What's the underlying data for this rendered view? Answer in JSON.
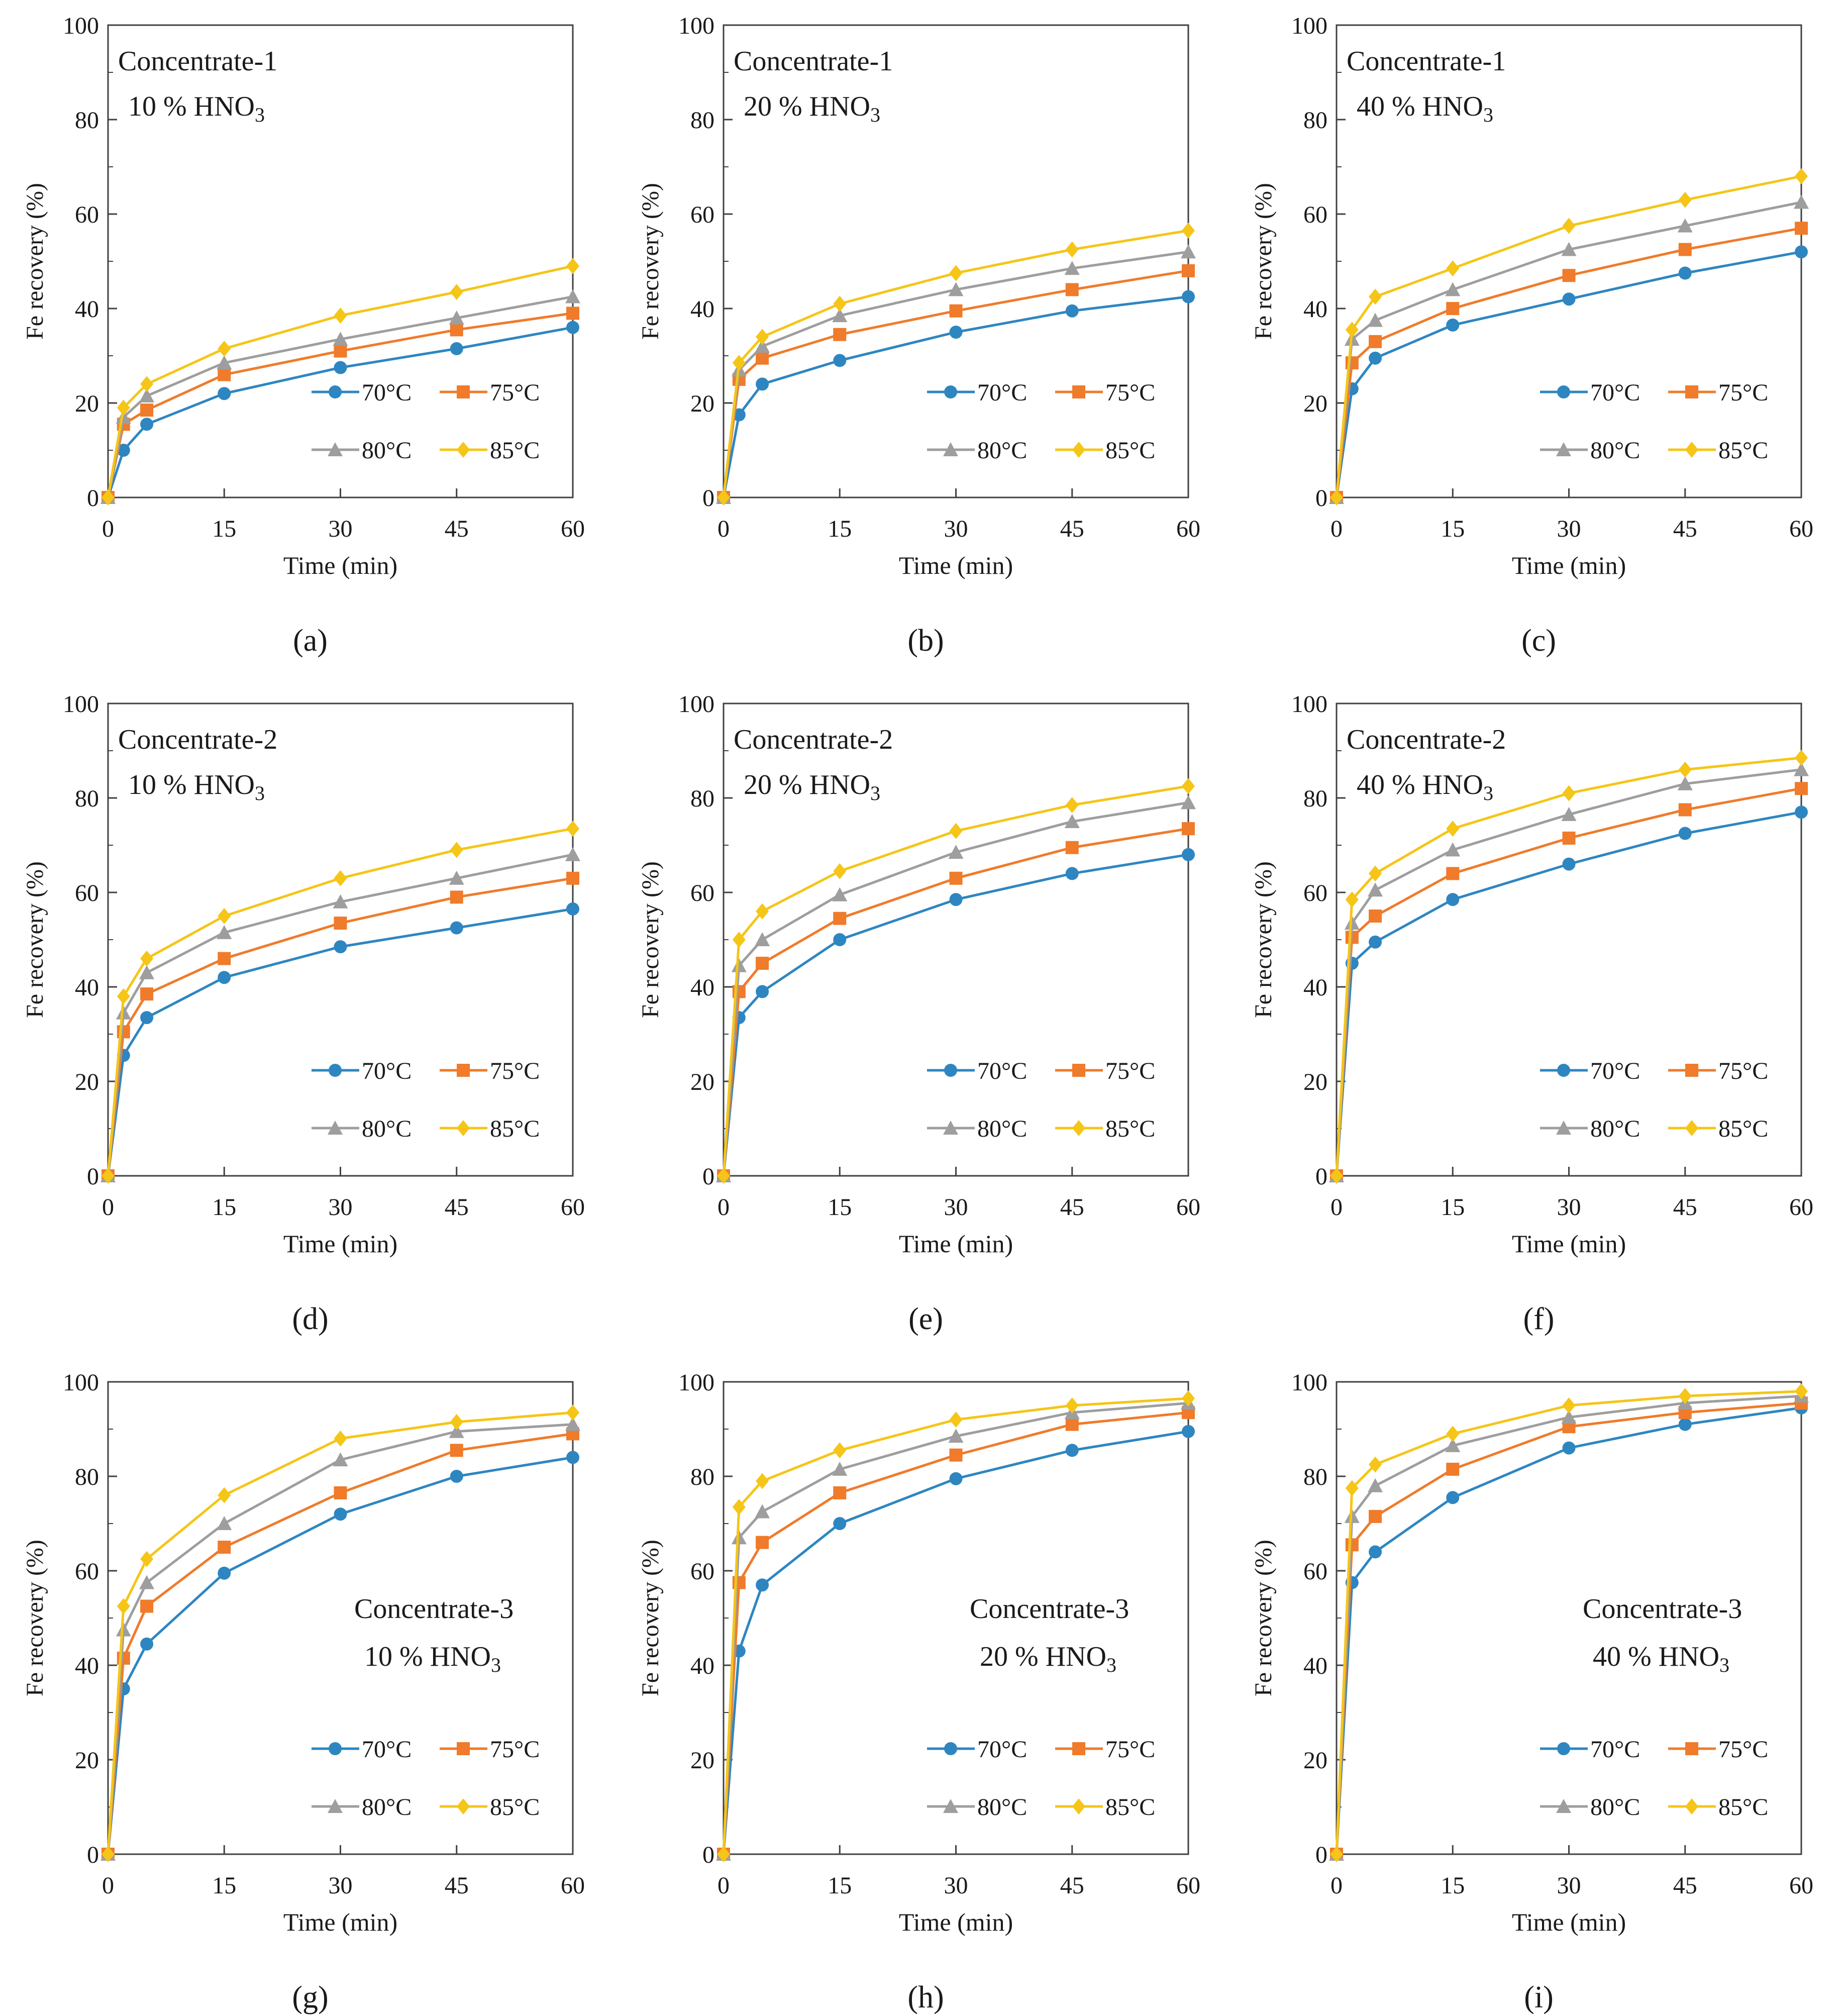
{
  "figure": {
    "x_label": "Time (min)",
    "y_label": "Fe recovery (%)",
    "series_colors": {
      "70°C": "#2e86c1",
      "75°C": "#ef7b2b",
      "80°C": "#9e9e9e",
      "85°C": "#f5c518"
    },
    "series_markers": {
      "70°C": "circle",
      "75°C": "square",
      "80°C": "triangle",
      "85°C": "diamond"
    }
  },
  "chart_data": [
    {
      "type": "line",
      "panel": "(a)",
      "annotation": [
        "Concentrate-1",
        "10 % HNO3"
      ],
      "xlabel": "Time (min)",
      "ylabel": "Fe recovery (%)",
      "x": [
        0,
        2,
        5,
        15,
        30,
        45,
        60
      ],
      "xticks": [
        0,
        15,
        30,
        45,
        60
      ],
      "yticks": [
        0,
        20,
        40,
        60,
        80,
        100
      ],
      "xlim": [
        0,
        60
      ],
      "ylim": [
        0,
        100
      ],
      "legend_position": "lower-right",
      "annotation_position": "top-left",
      "series": [
        {
          "name": "70°C",
          "values": [
            0,
            10,
            15.5,
            22,
            27.5,
            31.5,
            36
          ]
        },
        {
          "name": "75°C",
          "values": [
            0,
            15.5,
            18.5,
            26,
            31,
            35.5,
            39
          ]
        },
        {
          "name": "80°C",
          "values": [
            0,
            17,
            21.5,
            28.5,
            33.5,
            38,
            42.5
          ]
        },
        {
          "name": "85°C",
          "values": [
            0,
            19,
            24,
            31.5,
            38.5,
            43.5,
            49
          ]
        }
      ]
    },
    {
      "type": "line",
      "panel": "(b)",
      "annotation": [
        "Concentrate-1",
        "20 % HNO3"
      ],
      "xlabel": "Time (min)",
      "ylabel": "Fe recovery (%)",
      "x": [
        0,
        2,
        5,
        15,
        30,
        45,
        60
      ],
      "xticks": [
        0,
        15,
        30,
        45,
        60
      ],
      "yticks": [
        0,
        20,
        40,
        60,
        80,
        100
      ],
      "xlim": [
        0,
        60
      ],
      "ylim": [
        0,
        100
      ],
      "legend_position": "lower-right",
      "annotation_position": "top-left",
      "series": [
        {
          "name": "70°C",
          "values": [
            0,
            17.5,
            24,
            29,
            35,
            39.5,
            42.5
          ]
        },
        {
          "name": "75°C",
          "values": [
            0,
            25,
            29.5,
            34.5,
            39.5,
            44,
            48
          ]
        },
        {
          "name": "80°C",
          "values": [
            0,
            27,
            32,
            38.5,
            44,
            48.5,
            52
          ]
        },
        {
          "name": "85°C",
          "values": [
            0,
            28.5,
            34,
            41,
            47.5,
            52.5,
            56.5
          ]
        }
      ]
    },
    {
      "type": "line",
      "panel": "(c)",
      "annotation": [
        "Concentrate-1",
        "40 % HNO3"
      ],
      "xlabel": "Time (min)",
      "ylabel": "Fe recovery (%)",
      "x": [
        0,
        2,
        5,
        15,
        30,
        45,
        60
      ],
      "xticks": [
        0,
        15,
        30,
        45,
        60
      ],
      "yticks": [
        0,
        20,
        40,
        60,
        80,
        100
      ],
      "xlim": [
        0,
        60
      ],
      "ylim": [
        0,
        100
      ],
      "legend_position": "lower-right",
      "annotation_position": "top-left",
      "series": [
        {
          "name": "70°C",
          "values": [
            0,
            23,
            29.5,
            36.5,
            42,
            47.5,
            52
          ]
        },
        {
          "name": "75°C",
          "values": [
            0,
            28.5,
            33,
            40,
            47,
            52.5,
            57
          ]
        },
        {
          "name": "80°C",
          "values": [
            0,
            33.5,
            37.5,
            44,
            52.5,
            57.5,
            62.5
          ]
        },
        {
          "name": "85°C",
          "values": [
            0,
            35.5,
            42.5,
            48.5,
            57.5,
            63,
            68
          ]
        }
      ]
    },
    {
      "type": "line",
      "panel": "(d)",
      "annotation": [
        "Concentrate-2",
        "10 % HNO3"
      ],
      "xlabel": "Time (min)",
      "ylabel": "Fe recovery (%)",
      "x": [
        0,
        2,
        5,
        15,
        30,
        45,
        60
      ],
      "xticks": [
        0,
        15,
        30,
        45,
        60
      ],
      "yticks": [
        0,
        20,
        40,
        60,
        80,
        100
      ],
      "xlim": [
        0,
        60
      ],
      "ylim": [
        0,
        100
      ],
      "legend_position": "lower-right",
      "annotation_position": "top-left",
      "series": [
        {
          "name": "70°C",
          "values": [
            0,
            25.5,
            33.5,
            42,
            48.5,
            52.5,
            56.5
          ]
        },
        {
          "name": "75°C",
          "values": [
            0,
            30.5,
            38.5,
            46,
            53.5,
            59,
            63
          ]
        },
        {
          "name": "80°C",
          "values": [
            0,
            34.5,
            43,
            51.5,
            58,
            63,
            68
          ]
        },
        {
          "name": "85°C",
          "values": [
            0,
            38,
            46,
            55,
            63,
            69,
            73.5
          ]
        }
      ]
    },
    {
      "type": "line",
      "panel": "(e)",
      "annotation": [
        "Concentrate-2",
        "20 % HNO3"
      ],
      "xlabel": "Time (min)",
      "ylabel": "Fe recovery (%)",
      "x": [
        0,
        2,
        5,
        15,
        30,
        45,
        60
      ],
      "xticks": [
        0,
        15,
        30,
        45,
        60
      ],
      "yticks": [
        0,
        20,
        40,
        60,
        80,
        100
      ],
      "xlim": [
        0,
        60
      ],
      "ylim": [
        0,
        100
      ],
      "legend_position": "lower-right",
      "annotation_position": "top-left",
      "series": [
        {
          "name": "70°C",
          "values": [
            0,
            33.5,
            39,
            50,
            58.5,
            64,
            68
          ]
        },
        {
          "name": "75°C",
          "values": [
            0,
            39,
            45,
            54.5,
            63,
            69.5,
            73.5
          ]
        },
        {
          "name": "80°C",
          "values": [
            0,
            44.5,
            50,
            59.5,
            68.5,
            75,
            79
          ]
        },
        {
          "name": "85°C",
          "values": [
            0,
            50,
            56,
            64.5,
            73,
            78.5,
            82.5
          ]
        }
      ]
    },
    {
      "type": "line",
      "panel": "(f)",
      "annotation": [
        "Concentrate-2",
        "40 % HNO3"
      ],
      "xlabel": "Time (min)",
      "ylabel": "Fe recovery (%)",
      "x": [
        0,
        2,
        5,
        15,
        30,
        45,
        60
      ],
      "xticks": [
        0,
        15,
        30,
        45,
        60
      ],
      "yticks": [
        0,
        20,
        40,
        60,
        80,
        100
      ],
      "xlim": [
        0,
        60
      ],
      "ylim": [
        0,
        100
      ],
      "legend_position": "lower-right",
      "annotation_position": "top-left",
      "series": [
        {
          "name": "70°C",
          "values": [
            0,
            45,
            49.5,
            58.5,
            66,
            72.5,
            77
          ]
        },
        {
          "name": "75°C",
          "values": [
            0,
            50.5,
            55,
            64,
            71.5,
            77.5,
            82
          ]
        },
        {
          "name": "80°C",
          "values": [
            0,
            53.5,
            60.5,
            69,
            76.5,
            83,
            86
          ]
        },
        {
          "name": "85°C",
          "values": [
            0,
            58.5,
            64,
            73.5,
            81,
            86,
            88.5
          ]
        }
      ]
    },
    {
      "type": "line",
      "panel": "(g)",
      "annotation": [
        "Concentrate-3",
        "10 % HNO3"
      ],
      "xlabel": "Time (min)",
      "ylabel": "Fe recovery (%)",
      "x": [
        0,
        2,
        5,
        15,
        30,
        45,
        60
      ],
      "xticks": [
        0,
        15,
        30,
        45,
        60
      ],
      "yticks": [
        0,
        20,
        40,
        60,
        80,
        100
      ],
      "xlim": [
        0,
        60
      ],
      "ylim": [
        0,
        100
      ],
      "legend_position": "lower-right",
      "annotation_position": "middle-right",
      "series": [
        {
          "name": "70°C",
          "values": [
            0,
            35,
            44.5,
            59.5,
            72,
            80,
            84
          ]
        },
        {
          "name": "75°C",
          "values": [
            0,
            41.5,
            52.5,
            65,
            76.5,
            85.5,
            89
          ]
        },
        {
          "name": "80°C",
          "values": [
            0,
            47.5,
            57.5,
            70,
            83.5,
            89.5,
            91
          ]
        },
        {
          "name": "85°C",
          "values": [
            0,
            52.5,
            62.5,
            76,
            88,
            91.5,
            93.5
          ]
        }
      ]
    },
    {
      "type": "line",
      "panel": "(h)",
      "annotation": [
        "Concentrate-3",
        "20 % HNO3"
      ],
      "xlabel": "Time (min)",
      "ylabel": "Fe recovery (%)",
      "x": [
        0,
        2,
        5,
        15,
        30,
        45,
        60
      ],
      "xticks": [
        0,
        15,
        30,
        45,
        60
      ],
      "yticks": [
        0,
        20,
        40,
        60,
        80,
        100
      ],
      "xlim": [
        0,
        60
      ],
      "ylim": [
        0,
        100
      ],
      "legend_position": "lower-right",
      "annotation_position": "middle-right",
      "series": [
        {
          "name": "70°C",
          "values": [
            0,
            43,
            57,
            70,
            79.5,
            85.5,
            89.5
          ]
        },
        {
          "name": "75°C",
          "values": [
            0,
            57.5,
            66,
            76.5,
            84.5,
            91,
            93.5
          ]
        },
        {
          "name": "80°C",
          "values": [
            0,
            67,
            72.5,
            81.5,
            88.5,
            93.5,
            95.5
          ]
        },
        {
          "name": "85°C",
          "values": [
            0,
            73.5,
            79,
            85.5,
            92,
            95,
            96.5
          ]
        }
      ]
    },
    {
      "type": "line",
      "panel": "(i)",
      "annotation": [
        "Concentrate-3",
        "40 % HNO3"
      ],
      "xlabel": "Time (min)",
      "ylabel": "Fe recovery (%)",
      "x": [
        0,
        2,
        5,
        15,
        30,
        45,
        60
      ],
      "xticks": [
        0,
        15,
        30,
        45,
        60
      ],
      "yticks": [
        0,
        20,
        40,
        60,
        80,
        100
      ],
      "xlim": [
        0,
        60
      ],
      "ylim": [
        0,
        100
      ],
      "legend_position": "lower-right",
      "annotation_position": "middle-right",
      "series": [
        {
          "name": "70°C",
          "values": [
            0,
            57.5,
            64,
            75.5,
            86,
            91,
            94.5
          ]
        },
        {
          "name": "75°C",
          "values": [
            0,
            65.5,
            71.5,
            81.5,
            90.5,
            93.5,
            95.5
          ]
        },
        {
          "name": "80°C",
          "values": [
            0,
            71.5,
            78,
            86.5,
            92.5,
            95.5,
            97
          ]
        },
        {
          "name": "85°C",
          "values": [
            0,
            77.5,
            82.5,
            89,
            95,
            97,
            98
          ]
        }
      ]
    }
  ]
}
